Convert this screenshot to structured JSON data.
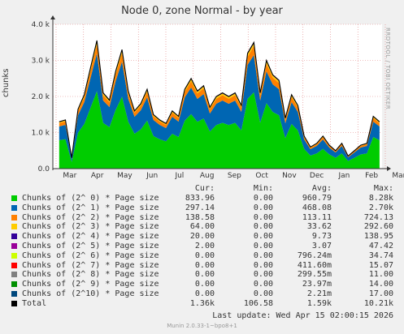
{
  "header": {
    "title": "Node 0, zone Normal - by year",
    "ylabel": "chunks",
    "watermark": "RRDTOOL / TOBI OETIKER"
  },
  "chart_data": {
    "type": "area",
    "title": "Node 0, zone Normal - by year",
    "ylabel": "chunks",
    "ylim": [
      0,
      4000
    ],
    "y_ticks": [
      {
        "v": 0,
        "label": "0.0"
      },
      {
        "v": 1000,
        "label": "1.0 k"
      },
      {
        "v": 2000,
        "label": "2.0 k"
      },
      {
        "v": 3000,
        "label": "3.0 k"
      },
      {
        "v": 4000,
        "label": "4.0 k"
      }
    ],
    "x_ticks": [
      "Mar",
      "Apr",
      "May",
      "Jun",
      "Jul",
      "Aug",
      "Sep",
      "Oct",
      "Nov",
      "Dec",
      "Jan",
      "Feb",
      "Mar"
    ],
    "grid": true,
    "x_weeks_start": 1.0,
    "x_weeks_end": 51.6,
    "series": [
      {
        "name": "Chunks of (2^ 0) * Page size",
        "color": "#00cc00"
      },
      {
        "name": "Chunks of (2^ 1) * Page size",
        "color": "#0066b3"
      },
      {
        "name": "Chunks of (2^ 2) * Page size",
        "color": "#ff8000"
      },
      {
        "name": "Chunks of (2^ 3) * Page size",
        "color": "#ffcc00"
      },
      {
        "name": "Chunks of (2^ 4) * Page size",
        "color": "#330099"
      },
      {
        "name": "Chunks of (2^ 5) * Page size",
        "color": "#990099"
      },
      {
        "name": "Chunks of (2^ 6) * Page size",
        "color": "#ccff00"
      },
      {
        "name": "Chunks of (2^ 7) * Page size",
        "color": "#ff0000"
      },
      {
        "name": "Chunks of (2^ 8) * Page size",
        "color": "#808080"
      },
      {
        "name": "Chunks of (2^ 9) * Page size",
        "color": "#008f00"
      },
      {
        "name": "Chunks of (2^10) * Page size",
        "color": "#00487d"
      }
    ],
    "profile_total": [
      1300,
      1350,
      300,
      1650,
      2050,
      2800,
      3550,
      2100,
      1900,
      2700,
      3300,
      2150,
      1600,
      1800,
      2200,
      1500,
      1350,
      1250,
      1600,
      1450,
      2200,
      2500,
      2150,
      2300,
      1700,
      2000,
      2100,
      2000,
      2100,
      1750,
      3200,
      3500,
      2100,
      3000,
      2600,
      2450,
      1400,
      2050,
      1750,
      900,
      600,
      700,
      900,
      650,
      500,
      700,
      350,
      500,
      650,
      700,
      1450,
      1300
    ]
  },
  "legend": {
    "headers": {
      "cur": "Cur:",
      "min": "Min:",
      "avg": "Avg:",
      "max": "Max:"
    },
    "rows": [
      {
        "label": "Chunks of (2^ 0) * Page size",
        "color": "#00cc00",
        "cur": "833.96",
        "min": "0.00",
        "avg": "960.79",
        "max": "8.28k"
      },
      {
        "label": "Chunks of (2^ 1) * Page size",
        "color": "#0066b3",
        "cur": "297.14",
        "min": "0.00",
        "avg": "468.08",
        "max": "2.70k"
      },
      {
        "label": "Chunks of (2^ 2) * Page size",
        "color": "#ff8000",
        "cur": "138.58",
        "min": "0.00",
        "avg": "113.11",
        "max": "724.13"
      },
      {
        "label": "Chunks of (2^ 3) * Page size",
        "color": "#ffcc00",
        "cur": "64.00",
        "min": "0.00",
        "avg": "33.62",
        "max": "292.60"
      },
      {
        "label": "Chunks of (2^ 4) * Page size",
        "color": "#330099",
        "cur": "20.00",
        "min": "0.00",
        "avg": "9.73",
        "max": "138.95"
      },
      {
        "label": "Chunks of (2^ 5) * Page size",
        "color": "#990099",
        "cur": "2.00",
        "min": "0.00",
        "avg": "3.07",
        "max": "47.42"
      },
      {
        "label": "Chunks of (2^ 6) * Page size",
        "color": "#ccff00",
        "cur": "0.00",
        "min": "0.00",
        "avg": "796.24m",
        "max": "34.74"
      },
      {
        "label": "Chunks of (2^ 7) * Page size",
        "color": "#ff0000",
        "cur": "0.00",
        "min": "0.00",
        "avg": "411.60m",
        "max": "15.07"
      },
      {
        "label": "Chunks of (2^ 8) * Page size",
        "color": "#808080",
        "cur": "0.00",
        "min": "0.00",
        "avg": "299.55m",
        "max": "11.00"
      },
      {
        "label": "Chunks of (2^ 9) * Page size",
        "color": "#008f00",
        "cur": "0.00",
        "min": "0.00",
        "avg": "23.97m",
        "max": "14.00"
      },
      {
        "label": "Chunks of (2^10) * Page size",
        "color": "#00487d",
        "cur": "0.00",
        "min": "0.00",
        "avg": "2.21m",
        "max": "17.00"
      },
      {
        "label": "Total",
        "color": "#000000",
        "cur": "1.36k",
        "min": "106.58",
        "avg": "1.59k",
        "max": "10.21k"
      }
    ],
    "last_update": "Last update: Wed Apr 15 02:00:15 2026"
  },
  "footer": "Munin 2.0.33-1~bpo8+1"
}
